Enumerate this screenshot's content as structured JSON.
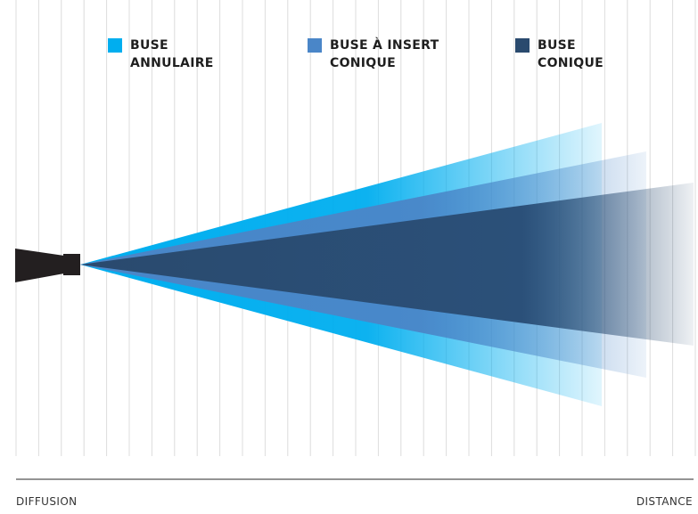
{
  "legend": {
    "items": [
      {
        "line1": "BUSE",
        "line2": "ANNULAIRE",
        "color": "#00aeef"
      },
      {
        "line1": "BUSE À INSERT",
        "line2": "CONIQUE",
        "color": "#4a86c8"
      },
      {
        "line1": "BUSE",
        "line2": "CONIQUE",
        "color": "#2a4a6e"
      }
    ]
  },
  "axis": {
    "left_label": "DIFFUSION",
    "right_label": "DISTANCE"
  },
  "icons": {
    "nozzle": "nozzle-icon"
  }
}
